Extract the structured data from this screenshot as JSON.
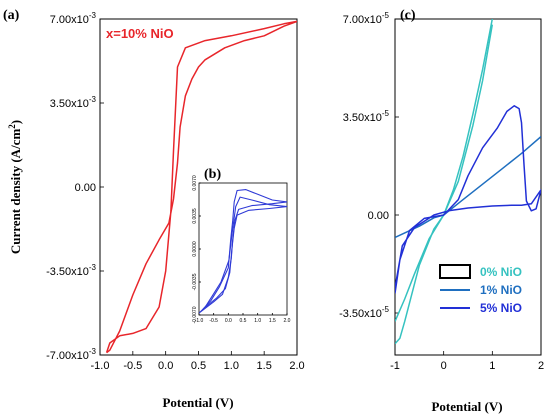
{
  "colors": {
    "nio_10": "#e8262b",
    "inset": "#2f3ad6",
    "nio_0": "#35c2c0",
    "nio_1": "#1f6fc0",
    "nio_5": "#2230d6"
  },
  "chart_data": [
    {
      "id": "a",
      "type": "line",
      "panel_label": "(a)",
      "xlabel": "Potential (V)",
      "ylabel": "Current density (A/cm",
      "ylabel_sup": "2",
      "ylabel_close": ")",
      "annotation": "x=10% NiO",
      "xlim": [
        -1.0,
        2.0
      ],
      "ylim": [
        -0.007,
        0.007
      ],
      "x_ticks": [
        {
          "v": -1.0,
          "label": "-1.0"
        },
        {
          "v": -0.5,
          "label": "-0.5"
        },
        {
          "v": 0.0,
          "label": "0.0"
        },
        {
          "v": 0.5,
          "label": "0.5"
        },
        {
          "v": 1.0,
          "label": "1.0"
        },
        {
          "v": 1.5,
          "label": "1.5"
        },
        {
          "v": 2.0,
          "label": "2.0"
        }
      ],
      "y_ticks": [
        {
          "v": 0.007,
          "label": "7.00x10",
          "exp": "-3"
        },
        {
          "v": 0.0035,
          "label": "3.50x10",
          "exp": "-3"
        },
        {
          "v": 0.0,
          "label": "0.00",
          "exp": ""
        },
        {
          "v": -0.0035,
          "label": "-3.50x10",
          "exp": "-3"
        },
        {
          "v": -0.007,
          "label": "-7.00x10",
          "exp": "-3"
        }
      ],
      "series": [
        {
          "color": "#e8262b",
          "points": [
            [
              -0.9,
              -0.0069
            ],
            [
              -0.85,
              -0.0065
            ],
            [
              -0.7,
              -0.0062
            ],
            [
              -0.5,
              -0.0061
            ],
            [
              -0.3,
              -0.0059
            ],
            [
              -0.1,
              -0.005
            ],
            [
              0.0,
              -0.0035
            ],
            [
              0.08,
              -0.001
            ],
            [
              0.12,
              0.0015
            ],
            [
              0.18,
              0.005
            ],
            [
              0.3,
              0.0058
            ],
            [
              0.6,
              0.0061
            ],
            [
              1.0,
              0.0063
            ],
            [
              1.5,
              0.0066
            ],
            [
              1.8,
              0.0068
            ],
            [
              2.0,
              0.0069
            ],
            [
              1.8,
              0.0067
            ],
            [
              1.5,
              0.0063
            ],
            [
              1.2,
              0.0061
            ],
            [
              0.9,
              0.0058
            ],
            [
              0.6,
              0.0053
            ],
            [
              0.5,
              0.005
            ],
            [
              0.4,
              0.0045
            ],
            [
              0.3,
              0.0038
            ],
            [
              0.22,
              0.0025
            ],
            [
              0.18,
              0.001
            ],
            [
              0.12,
              -0.0005
            ],
            [
              0.05,
              -0.0015
            ],
            [
              -0.1,
              -0.0022
            ],
            [
              -0.3,
              -0.0032
            ],
            [
              -0.5,
              -0.0045
            ],
            [
              -0.7,
              -0.006
            ],
            [
              -0.85,
              -0.0068
            ],
            [
              -0.9,
              -0.0069
            ]
          ]
        }
      ]
    },
    {
      "id": "b",
      "type": "line",
      "panel_label": "(b)",
      "xlim": [
        -1.0,
        2.0
      ],
      "ylim": [
        -0.007,
        0.007
      ],
      "x_ticks": [
        {
          "v": -1.0,
          "label": "-1.0"
        },
        {
          "v": -0.5,
          "label": "-0.5"
        },
        {
          "v": 0.0,
          "label": "0.0"
        },
        {
          "v": 0.5,
          "label": "0.5"
        },
        {
          "v": 1.0,
          "label": "1.0"
        },
        {
          "v": 1.5,
          "label": "1.5"
        },
        {
          "v": 2.0,
          "label": "2.0"
        }
      ],
      "y_ticks": [
        {
          "v": 0.007,
          "label": "0.0070"
        },
        {
          "v": 0.0035,
          "label": "0.0035"
        },
        {
          "v": 0.0,
          "label": "0.0000"
        },
        {
          "v": -0.0035,
          "label": "-0.0035"
        },
        {
          "v": -0.007,
          "label": "-0.0070"
        }
      ],
      "series": [
        {
          "color": "#2f3ad6",
          "points": [
            [
              -1.0,
              -0.0068
            ],
            [
              -0.5,
              -0.0056
            ],
            [
              -0.2,
              -0.0048
            ],
            [
              0.0,
              -0.003
            ],
            [
              0.1,
              -0.001
            ],
            [
              0.15,
              0.001
            ],
            [
              0.22,
              0.003
            ],
            [
              0.35,
              0.0042
            ],
            [
              0.8,
              0.0046
            ],
            [
              1.5,
              0.0048
            ],
            [
              2.0,
              0.005
            ],
            [
              1.5,
              0.0052
            ],
            [
              1.0,
              0.0058
            ],
            [
              0.6,
              0.0063
            ],
            [
              0.3,
              0.0062
            ],
            [
              0.2,
              0.005
            ],
            [
              0.15,
              0.003
            ],
            [
              0.08,
              0.001
            ],
            [
              0.0,
              -0.002
            ],
            [
              -0.3,
              -0.004
            ],
            [
              -0.6,
              -0.0055
            ],
            [
              -0.9,
              -0.0065
            ],
            [
              -1.0,
              -0.0068
            ]
          ]
        },
        {
          "color": "#2f3ad6",
          "points": [
            [
              -0.8,
              -0.0062
            ],
            [
              -0.4,
              -0.0052
            ],
            [
              -0.1,
              -0.0042
            ],
            [
              0.05,
              -0.0025
            ],
            [
              0.12,
              0.0
            ],
            [
              0.2,
              0.0022
            ],
            [
              0.3,
              0.0036
            ],
            [
              0.7,
              0.0041
            ],
            [
              1.4,
              0.0043
            ],
            [
              2.0,
              0.0045
            ],
            [
              1.4,
              0.0047
            ],
            [
              0.8,
              0.0052
            ],
            [
              0.4,
              0.0055
            ],
            [
              0.25,
              0.0045
            ],
            [
              0.12,
              0.0015
            ],
            [
              0.02,
              -0.0012
            ],
            [
              -0.25,
              -0.0035
            ],
            [
              -0.55,
              -0.005
            ],
            [
              -0.8,
              -0.0062
            ]
          ]
        }
      ]
    },
    {
      "id": "c",
      "type": "line",
      "panel_label": "(c)",
      "xlabel": "Potential (V)",
      "xlim": [
        -1,
        2
      ],
      "ylim": [
        -5e-05,
        7e-05
      ],
      "x_ticks": [
        {
          "v": -1,
          "label": "-1"
        },
        {
          "v": 0,
          "label": "0"
        },
        {
          "v": 1,
          "label": "1"
        },
        {
          "v": 2,
          "label": "2"
        }
      ],
      "y_ticks": [
        {
          "v": 7e-05,
          "label": "7.00x10",
          "exp": "-5"
        },
        {
          "v": 3.5e-05,
          "label": "3.50x10",
          "exp": "-5"
        },
        {
          "v": 0.0,
          "label": "0.00",
          "exp": ""
        },
        {
          "v": -3.5e-05,
          "label": "-3.50x10",
          "exp": "-5"
        }
      ],
      "legend": [
        {
          "label": "0% NiO",
          "color": "#35c2c0",
          "marker": "box"
        },
        {
          "label": "1% NiO",
          "color": "#1f6fc0",
          "marker": "line"
        },
        {
          "label": "5% NiO",
          "color": "#2230d6",
          "marker": "line"
        }
      ],
      "series": [
        {
          "name": "0% NiO",
          "color": "#35c2c0",
          "points": [
            [
              -1.0,
              -4.6e-05
            ],
            [
              -0.9,
              -4.4e-05
            ],
            [
              -0.8,
              -3.8e-05
            ],
            [
              -0.5,
              -1.8e-05
            ],
            [
              -0.2,
              -5e-06
            ],
            [
              0.0,
              0.0
            ],
            [
              0.2,
              9e-06
            ],
            [
              0.4,
              2.1e-05
            ],
            [
              0.6,
              3.6e-05
            ],
            [
              0.8,
              5.2e-05
            ],
            [
              1.0,
              7e-05
            ]
          ]
        },
        {
          "name": "0% NiO",
          "color": "#35c2c0",
          "points": [
            [
              -1.0,
              -3.8e-05
            ],
            [
              -0.8,
              -3e-05
            ],
            [
              -0.6,
              -2.1e-05
            ],
            [
              -0.3,
              -8.5e-06
            ],
            [
              0.0,
              0.0
            ],
            [
              0.3,
              1.2e-05
            ],
            [
              0.6,
              3.2e-05
            ],
            [
              0.8,
              4.8e-05
            ],
            [
              1.0,
              6.8e-05
            ]
          ]
        },
        {
          "name": "1% NiO",
          "color": "#1f6fc0",
          "points": [
            [
              -1.0,
              -8e-06
            ],
            [
              -0.5,
              -4e-06
            ],
            [
              -0.2,
              -1e-06
            ],
            [
              0.0,
              0.0
            ],
            [
              0.4,
              5.5e-06
            ],
            [
              0.8,
              1.1e-05
            ],
            [
              1.2,
              1.65e-05
            ],
            [
              1.6,
              2.2e-05
            ],
            [
              2.0,
              2.8e-05
            ]
          ]
        },
        {
          "name": "5% NiO",
          "color": "#2230d6",
          "points": [
            [
              -1.0,
              -2.8e-05
            ],
            [
              -0.9,
              -1.6e-05
            ],
            [
              -0.7,
              -5.5e-06
            ],
            [
              -0.4,
              -1.2e-06
            ],
            [
              0.0,
              0.0
            ],
            [
              0.3,
              5.5e-06
            ],
            [
              0.5,
              1.4e-05
            ],
            [
              0.8,
              2.4e-05
            ],
            [
              1.1,
              3.1e-05
            ],
            [
              1.3,
              3.7e-05
            ],
            [
              1.45,
              3.9e-05
            ],
            [
              1.55,
              3.8e-05
            ],
            [
              1.6,
              3.3e-05
            ],
            [
              1.65,
              1.8e-05
            ],
            [
              1.7,
              5e-06
            ],
            [
              1.8,
              1.5e-06
            ],
            [
              1.9,
              2.2e-06
            ],
            [
              2.0,
              9e-06
            ],
            [
              1.8,
              4e-06
            ],
            [
              1.6,
              3.5e-06
            ],
            [
              1.4,
              3.5e-06
            ],
            [
              1.0,
              3.2e-06
            ],
            [
              0.5,
              2.5e-06
            ],
            [
              0.1,
              1.5e-06
            ],
            [
              -0.2,
              0.0
            ],
            [
              -0.6,
              -4.5e-06
            ],
            [
              -0.85,
              -1.1e-05
            ],
            [
              -1.0,
              -2.6e-05
            ]
          ]
        }
      ]
    }
  ]
}
